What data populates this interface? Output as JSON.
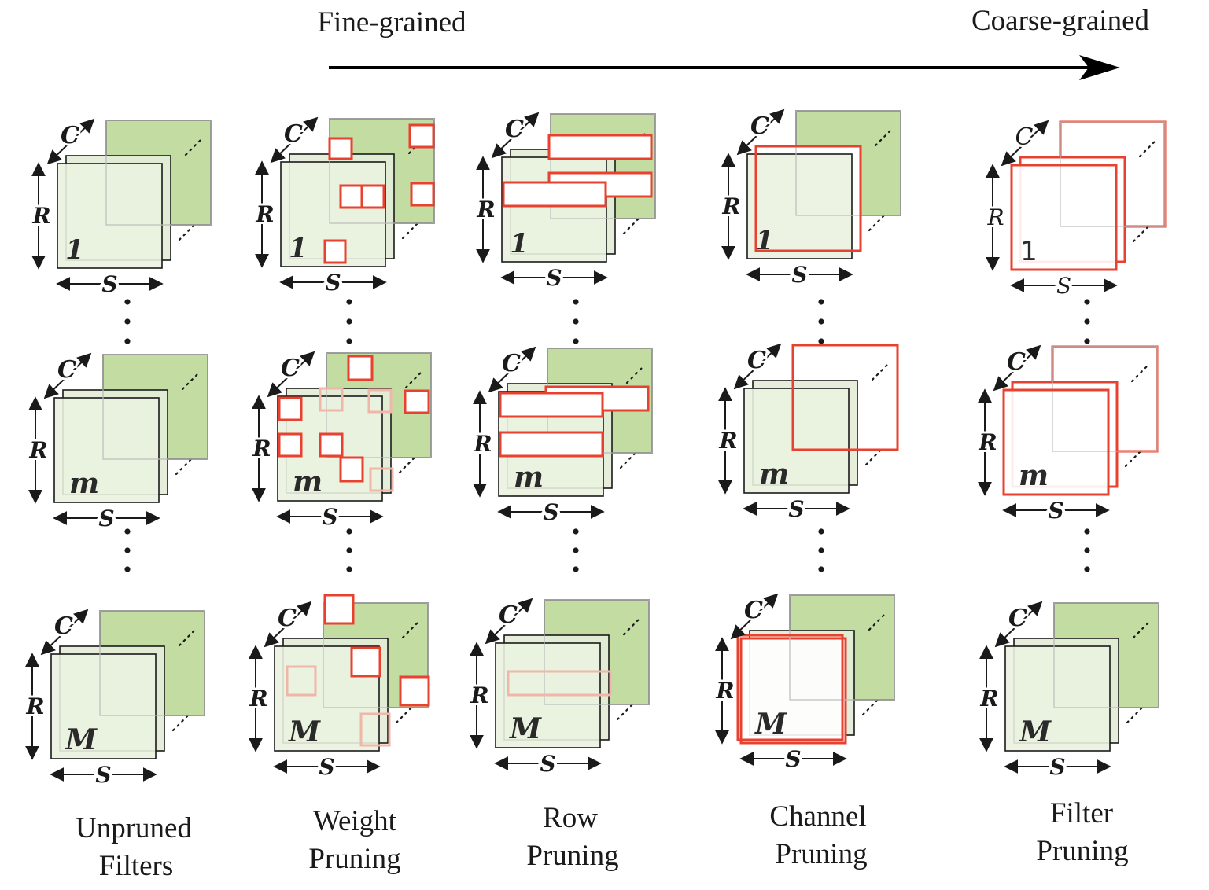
{
  "header": {
    "left_label": "Fine-grained",
    "right_label": "Coarse-grained"
  },
  "colors": {
    "prune": "#e8412f",
    "back_fill": "#c2dca2",
    "mid_fill": "#e4edd8",
    "front_fill": "#eaf2e0",
    "ink": "#1a1a1a"
  },
  "axis_labels": {
    "channels": "C",
    "rows": "R",
    "cols": "S"
  },
  "row_indices": [
    "1",
    "m",
    "M"
  ],
  "columns": [
    {
      "key": "unpruned",
      "caption": [
        "Unpruned",
        "Filters"
      ]
    },
    {
      "key": "weight",
      "caption": [
        "Weight",
        "Pruning"
      ]
    },
    {
      "key": "row",
      "caption": [
        "Row",
        "Pruning"
      ]
    },
    {
      "key": "channel",
      "caption": [
        "Channel",
        "Pruning"
      ]
    },
    {
      "key": "filter",
      "caption": [
        "Filter",
        "Pruning"
      ]
    }
  ]
}
